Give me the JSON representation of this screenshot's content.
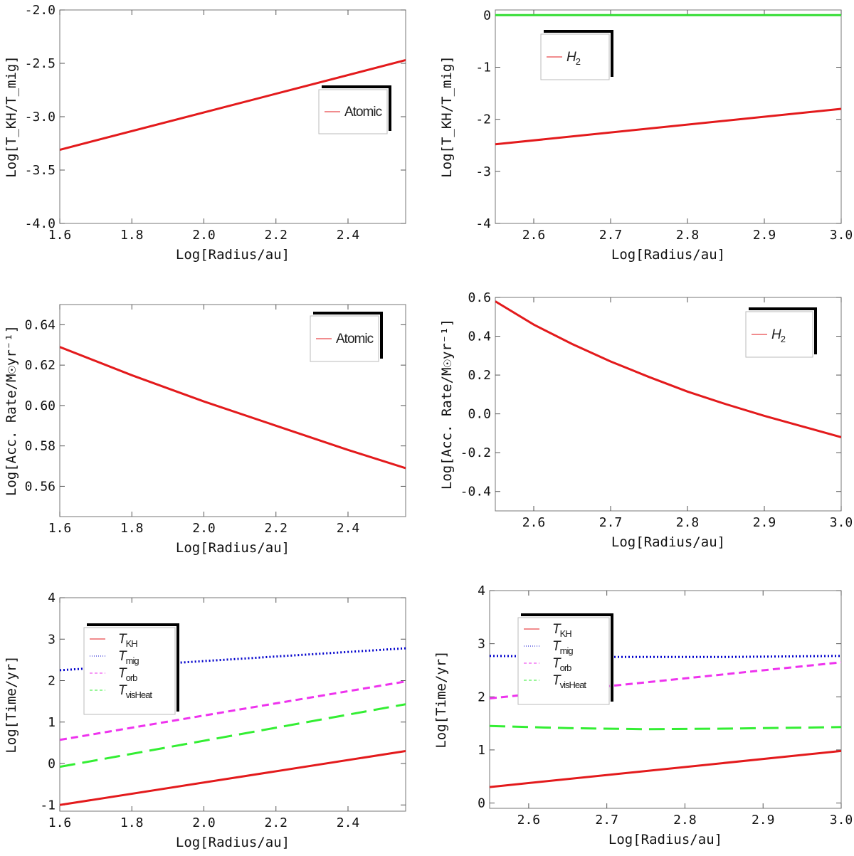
{
  "chart_data": [
    {
      "type": "line",
      "xlabel": "Log[Radius/au]",
      "ylabel": "Log[T_KH/T_mig]",
      "xlim": [
        1.6,
        2.56
      ],
      "ylim": [
        -4.0,
        -2.0
      ],
      "xticks": [
        1.6,
        1.8,
        2.0,
        2.2,
        2.4
      ],
      "xtick_labels": [
        "1.6",
        "1.8",
        "2.0",
        "2.2",
        "2.4"
      ],
      "yticks": [
        -4.0,
        -3.5,
        -3.0,
        -2.5,
        -2.0
      ],
      "ytick_labels": [
        "-4.0",
        "-3.5",
        "-3.0",
        "-2.5",
        "-2.0"
      ],
      "legend_position": "right-middle",
      "grid": false,
      "series": [
        {
          "name": "Atomic",
          "legend_sub": "",
          "color": "#e31a1c",
          "dash": "solid",
          "x": [
            1.6,
            2.56
          ],
          "y": [
            -3.31,
            -2.47
          ]
        }
      ]
    },
    {
      "type": "line",
      "xlabel": "Log[Radius/au]",
      "ylabel": "Log[T_KH/T_mig]",
      "xlim": [
        2.55,
        3.0
      ],
      "ylim": [
        -4,
        0.1
      ],
      "xticks": [
        2.6,
        2.7,
        2.8,
        2.9,
        3.0
      ],
      "xtick_labels": [
        "2.6",
        "2.7",
        "2.8",
        "2.9",
        "3.0"
      ],
      "yticks": [
        -4,
        -3,
        -2,
        -1,
        0
      ],
      "ytick_labels": [
        "-4",
        "-3",
        "-2",
        "-1",
        "0"
      ],
      "legend_position": "top-left",
      "grid": false,
      "series": [
        {
          "name": "H",
          "legend_sub": "2",
          "color": "#e31a1c",
          "dash": "solid",
          "x": [
            2.55,
            3.0
          ],
          "y": [
            -2.48,
            -1.8
          ]
        },
        {
          "name": "",
          "legend_sub": "",
          "color": "#33dd33",
          "dash": "solid",
          "x": [
            2.55,
            3.0
          ],
          "y": [
            0.0,
            0.0
          ]
        }
      ]
    },
    {
      "type": "line",
      "xlabel": "Log[Radius/au]",
      "ylabel": "Log[Acc. Rate/M☉yr⁻¹]",
      "xlim": [
        1.6,
        2.56
      ],
      "ylim": [
        0.545,
        0.65
      ],
      "xticks": [
        1.6,
        1.8,
        2.0,
        2.2,
        2.4
      ],
      "xtick_labels": [
        "1.6",
        "1.8",
        "2.0",
        "2.2",
        "2.4"
      ],
      "yticks": [
        0.56,
        0.58,
        0.6,
        0.62,
        0.64
      ],
      "ytick_labels": [
        "0.56",
        "0.58",
        "0.60",
        "0.62",
        "0.64"
      ],
      "legend_position": "top-right",
      "grid": false,
      "series": [
        {
          "name": "Atomic",
          "legend_sub": "",
          "color": "#e31a1c",
          "dash": "solid",
          "x": [
            1.6,
            1.8,
            2.0,
            2.2,
            2.4,
            2.56
          ],
          "y": [
            0.629,
            0.615,
            0.602,
            0.59,
            0.578,
            0.569
          ]
        }
      ]
    },
    {
      "type": "line",
      "xlabel": "Log[Radius/au]",
      "ylabel": "Log[Acc. Rate/M☉yr⁻¹]",
      "xlim": [
        2.55,
        3.0
      ],
      "ylim": [
        -0.5,
        0.6
      ],
      "xticks": [
        2.6,
        2.7,
        2.8,
        2.9,
        3.0
      ],
      "xtick_labels": [
        "2.6",
        "2.7",
        "2.8",
        "2.9",
        "3.0"
      ],
      "yticks": [
        -0.4,
        -0.2,
        0.0,
        0.2,
        0.4,
        0.6
      ],
      "ytick_labels": [
        "-0.4",
        "-0.2",
        "0.0",
        "0.2",
        "0.4",
        "0.6"
      ],
      "legend_position": "top-right",
      "grid": false,
      "series": [
        {
          "name": "H",
          "legend_sub": "2",
          "color": "#e31a1c",
          "dash": "solid",
          "x": [
            2.55,
            2.6,
            2.65,
            2.7,
            2.75,
            2.8,
            2.85,
            2.9,
            2.95,
            3.0
          ],
          "y": [
            0.58,
            0.46,
            0.36,
            0.27,
            0.19,
            0.115,
            0.05,
            -0.01,
            -0.065,
            -0.12
          ]
        }
      ]
    },
    {
      "type": "line",
      "xlabel": "Log[Radius/au]",
      "ylabel": "Log[Time/yr]",
      "xlim": [
        1.6,
        2.56
      ],
      "ylim": [
        -1.15,
        4.0
      ],
      "xticks": [
        1.6,
        1.8,
        2.0,
        2.2,
        2.4
      ],
      "xtick_labels": [
        "1.6",
        "1.8",
        "2.0",
        "2.2",
        "2.4"
      ],
      "yticks": [
        -1,
        0,
        1,
        2,
        3,
        4
      ],
      "ytick_labels": [
        "-1",
        "0",
        "1",
        "2",
        "3",
        "4"
      ],
      "legend_position": "top-left",
      "grid": false,
      "series": [
        {
          "name": "T",
          "legend_sub": "KH",
          "color": "#e31a1c",
          "dash": "solid",
          "x": [
            1.6,
            2.56
          ],
          "y": [
            -1.0,
            0.3
          ]
        },
        {
          "name": "T",
          "legend_sub": "mig",
          "color": "#0000cc",
          "dash": "dotted",
          "x": [
            1.6,
            2.56
          ],
          "y": [
            2.25,
            2.78
          ]
        },
        {
          "name": "T",
          "legend_sub": "orb",
          "color": "#ee33ee",
          "dash": "dashed",
          "x": [
            1.6,
            2.56
          ],
          "y": [
            0.57,
            1.98
          ]
        },
        {
          "name": "T",
          "legend_sub": "visHeat",
          "color": "#33ee33",
          "dash": "longdash",
          "x": [
            1.6,
            2.56
          ],
          "y": [
            -0.08,
            1.43
          ]
        }
      ]
    },
    {
      "type": "line",
      "xlabel": "Log[Radius/au]",
      "ylabel": "Log[Time/yr]",
      "xlim": [
        2.55,
        3.0
      ],
      "ylim": [
        -0.1,
        4.0
      ],
      "xticks": [
        2.6,
        2.7,
        2.8,
        2.9,
        3.0
      ],
      "xtick_labels": [
        "2.6",
        "2.7",
        "2.8",
        "2.9",
        "3.0"
      ],
      "yticks": [
        0,
        1,
        2,
        3,
        4
      ],
      "ytick_labels": [
        "0",
        "1",
        "2",
        "3",
        "4"
      ],
      "legend_position": "top-left",
      "grid": false,
      "series": [
        {
          "name": "T",
          "legend_sub": "KH",
          "color": "#e31a1c",
          "dash": "solid",
          "x": [
            2.55,
            3.0
          ],
          "y": [
            0.3,
            0.98
          ]
        },
        {
          "name": "T",
          "legend_sub": "mig",
          "color": "#0000cc",
          "dash": "dotted",
          "x": [
            2.55,
            2.7,
            2.85,
            3.0
          ],
          "y": [
            2.77,
            2.75,
            2.75,
            2.77
          ]
        },
        {
          "name": "T",
          "legend_sub": "orb",
          "color": "#ee33ee",
          "dash": "dashed",
          "x": [
            2.55,
            3.0
          ],
          "y": [
            1.97,
            2.65
          ]
        },
        {
          "name": "T",
          "legend_sub": "visHeat",
          "color": "#33ee33",
          "dash": "longdash",
          "x": [
            2.55,
            2.65,
            2.75,
            2.85,
            2.95,
            3.0
          ],
          "y": [
            1.45,
            1.41,
            1.39,
            1.4,
            1.42,
            1.43
          ]
        }
      ]
    }
  ]
}
